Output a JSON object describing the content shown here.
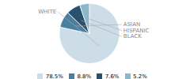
{
  "chart_data": {
    "type": "pie",
    "categories": [
      "WHITE",
      "ASIAN",
      "BLACK",
      "HISPANIC"
    ],
    "values": [
      78.5,
      8.8,
      7.6,
      5.2
    ],
    "value_labels": [
      "78.5%",
      "8.8%",
      "7.6%",
      "5.2%"
    ],
    "colors": [
      "#ccdde8",
      "#4a7fa0",
      "#2a5070",
      "#8db8cc"
    ],
    "legend": "bottom"
  }
}
